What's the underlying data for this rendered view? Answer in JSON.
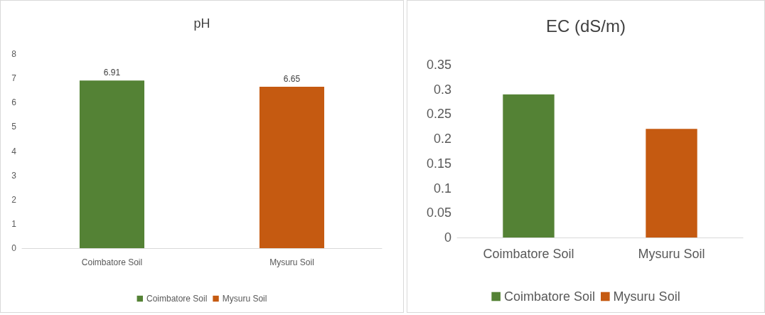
{
  "chart_data": [
    {
      "type": "bar",
      "title": "pH",
      "categories": [
        "Coimbatore Soil",
        "Mysuru Soil"
      ],
      "series": [
        {
          "name": "Coimbatore Soil",
          "color": "#548235",
          "values": [
            6.91,
            null
          ]
        },
        {
          "name": "Mysuru Soil",
          "color": "#c55a11",
          "values": [
            null,
            6.65
          ]
        }
      ],
      "ylim": [
        0,
        8
      ],
      "yticks": [
        0,
        1,
        2,
        3,
        4,
        5,
        6,
        7,
        8
      ],
      "data_labels": true,
      "legend": "bottom"
    },
    {
      "type": "bar",
      "title": "EC (dS/m)",
      "categories": [
        "Coimbatore Soil",
        "Mysuru Soil"
      ],
      "series": [
        {
          "name": "Coimbatore Soil",
          "color": "#548235",
          "values": [
            0.29,
            null
          ]
        },
        {
          "name": "Mysuru Soil",
          "color": "#c55a11",
          "values": [
            null,
            0.22
          ]
        }
      ],
      "ylim": [
        0,
        0.35
      ],
      "yticks": [
        0,
        0.05,
        0.1,
        0.15,
        0.2,
        0.25,
        0.3,
        0.35
      ],
      "legend": "bottom"
    }
  ]
}
